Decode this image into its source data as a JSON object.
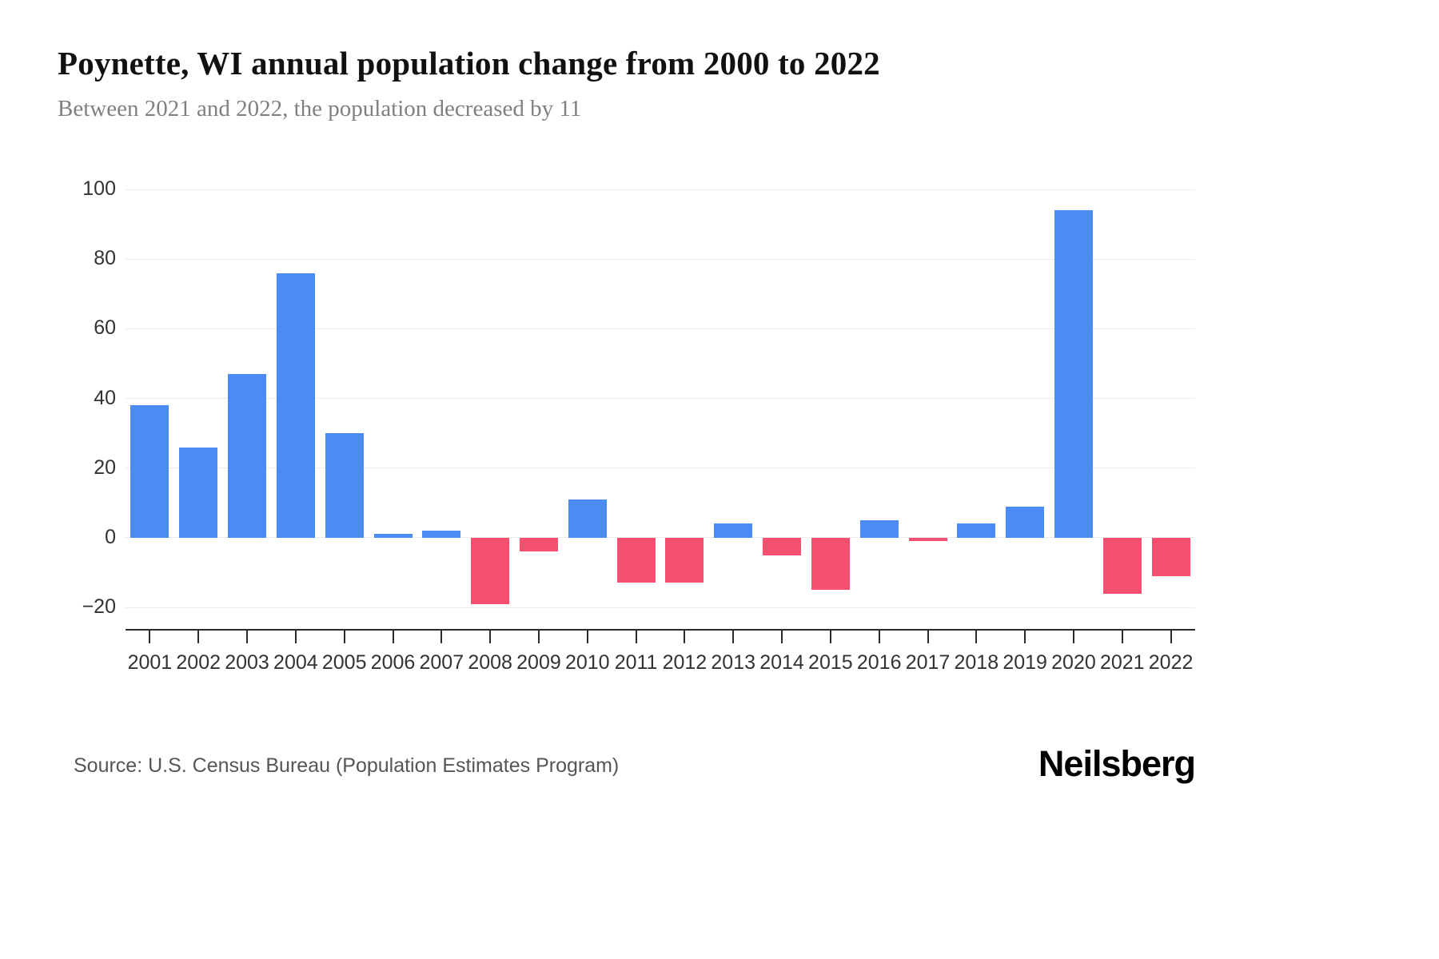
{
  "header": {
    "title": "Poynette, WI annual population change from 2000 to 2022",
    "subtitle": "Between 2021 and 2022, the population decreased by 11"
  },
  "footer": {
    "source": "Source: U.S. Census Bureau (Population Estimates Program)",
    "brand": "Neilsberg"
  },
  "chart_data": {
    "type": "bar",
    "title": "Poynette, WI annual population change from 2000 to 2022",
    "subtitle": "Between 2021 and 2022, the population decreased by 11",
    "categories": [
      "2001",
      "2002",
      "2003",
      "2004",
      "2005",
      "2006",
      "2007",
      "2008",
      "2009",
      "2010",
      "2011",
      "2012",
      "2013",
      "2014",
      "2015",
      "2016",
      "2017",
      "2018",
      "2019",
      "2020",
      "2021",
      "2022"
    ],
    "values": [
      38,
      26,
      47,
      76,
      30,
      1,
      2,
      -19,
      -4,
      11,
      -13,
      -13,
      4,
      -5,
      -15,
      5,
      -1,
      4,
      9,
      94,
      -16,
      -11
    ],
    "xlabel": "",
    "ylabel": "",
    "ylim": [
      -20,
      100
    ],
    "yticks": [
      100,
      80,
      60,
      40,
      20,
      0,
      -20
    ],
    "ytick_labels": [
      "100",
      "80",
      "60",
      "40",
      "20",
      "0",
      "−20"
    ],
    "grid": true,
    "legend": "none",
    "colors": {
      "positive": "#4b8bf4",
      "negative": "#f5506f"
    }
  }
}
